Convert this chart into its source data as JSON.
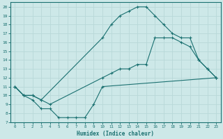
{
  "xlabel": "Humidex (Indice chaleur)",
  "bg_color": "#cde8e8",
  "line_color": "#1a7070",
  "grid_color": "#b8d8d8",
  "xlim": [
    -0.5,
    23.5
  ],
  "ylim": [
    7,
    20.5
  ],
  "xticks": [
    0,
    1,
    2,
    3,
    4,
    5,
    6,
    7,
    8,
    9,
    10,
    11,
    12,
    13,
    14,
    15,
    16,
    17,
    18,
    19,
    20,
    21,
    22,
    23
  ],
  "yticks": [
    7,
    8,
    9,
    10,
    11,
    12,
    13,
    14,
    15,
    16,
    17,
    18,
    19,
    20
  ],
  "line1_x": [
    0,
    1,
    2,
    3,
    10,
    11,
    12,
    13,
    14,
    15,
    16,
    17,
    18,
    19,
    20,
    21,
    22,
    23
  ],
  "line1_y": [
    11,
    10,
    10,
    9.5,
    16.5,
    18,
    19,
    19.5,
    20,
    20,
    19,
    18,
    17,
    16.5,
    16.5,
    14,
    13,
    12
  ],
  "line2_x": [
    0,
    1,
    2,
    3,
    4,
    10,
    11,
    12,
    13,
    14,
    15,
    16,
    17,
    18,
    19,
    20,
    21,
    22,
    23
  ],
  "line2_y": [
    11,
    10,
    10,
    9.5,
    9,
    12,
    12.5,
    13,
    13,
    13.5,
    13.5,
    16.5,
    16.5,
    16.5,
    16,
    15.5,
    14,
    13,
    12
  ],
  "line3_x": [
    0,
    1,
    2,
    3,
    4,
    5,
    6,
    7,
    8,
    9,
    10,
    23
  ],
  "line3_y": [
    11,
    10,
    9.5,
    8.5,
    8.5,
    7.5,
    7.5,
    7.5,
    7.5,
    9,
    11,
    12
  ]
}
